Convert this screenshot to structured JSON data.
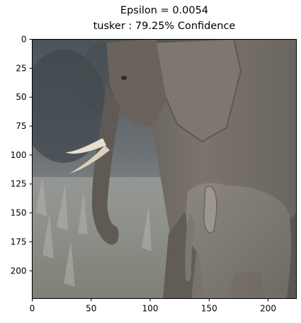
{
  "figure": {
    "title_line1": "Epsilon = 0.0054",
    "title_line2": "tusker : 79.25% Confidence"
  },
  "image": {
    "subject": "adult elephant with calf",
    "description_hidden": ""
  },
  "axes": {
    "x_ticks": [
      "0",
      "50",
      "100",
      "150",
      "200"
    ],
    "y_ticks": [
      "0",
      "25",
      "50",
      "75",
      "100",
      "125",
      "150",
      "175",
      "200"
    ],
    "x_range": [
      0,
      224
    ],
    "y_range": [
      0,
      224
    ]
  }
}
